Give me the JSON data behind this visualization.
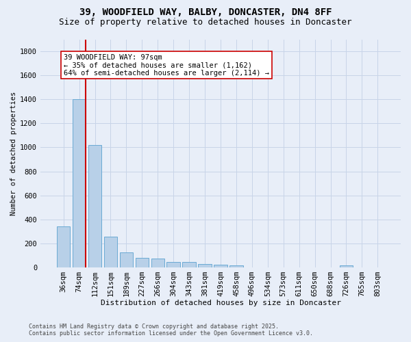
{
  "title_line1": "39, WOODFIELD WAY, BALBY, DONCASTER, DN4 8FF",
  "title_line2": "Size of property relative to detached houses in Doncaster",
  "xlabel": "Distribution of detached houses by size in Doncaster",
  "ylabel": "Number of detached properties",
  "categories": [
    "36sqm",
    "74sqm",
    "112sqm",
    "151sqm",
    "189sqm",
    "227sqm",
    "266sqm",
    "304sqm",
    "343sqm",
    "381sqm",
    "419sqm",
    "458sqm",
    "496sqm",
    "534sqm",
    "573sqm",
    "611sqm",
    "650sqm",
    "688sqm",
    "726sqm",
    "765sqm",
    "803sqm"
  ],
  "values": [
    340,
    1400,
    1020,
    255,
    125,
    80,
    75,
    48,
    45,
    28,
    20,
    18,
    0,
    0,
    0,
    0,
    0,
    0,
    18,
    0,
    0
  ],
  "bar_color": "#b8d0e8",
  "bar_edge_color": "#6aaad4",
  "vline_color": "#cc0000",
  "vline_x": 1.42,
  "annotation_text": "39 WOODFIELD WAY: 97sqm\n← 35% of detached houses are smaller (1,162)\n64% of semi-detached houses are larger (2,114) →",
  "annotation_box_color": "#ffffff",
  "annotation_box_edge": "#cc0000",
  "ylim": [
    0,
    1900
  ],
  "yticks": [
    0,
    200,
    400,
    600,
    800,
    1000,
    1200,
    1400,
    1600,
    1800
  ],
  "grid_color": "#c8d4e8",
  "background_color": "#e8eef8",
  "footer_text": "Contains HM Land Registry data © Crown copyright and database right 2025.\nContains public sector information licensed under the Open Government Licence v3.0.",
  "title_fontsize": 10,
  "subtitle_fontsize": 9,
  "axis_fontsize": 7.5,
  "annotation_fontsize": 7.5,
  "ylabel_fontsize": 7.5,
  "xlabel_fontsize": 8
}
